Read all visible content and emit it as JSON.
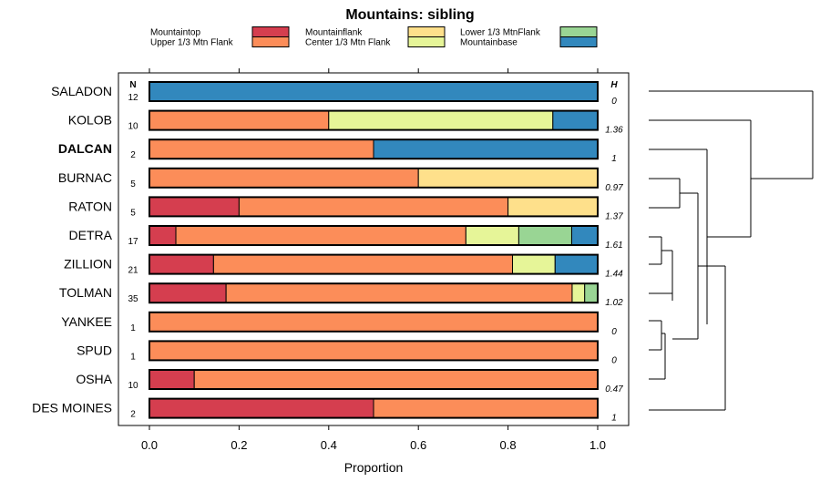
{
  "chart_data": {
    "type": "bar",
    "orientation": "horizontal",
    "stacked": true,
    "title": "Mountains: sibling",
    "xlabel": "Proportion",
    "xlim": [
      0,
      1
    ],
    "xticks": [
      "0.0",
      "0.2",
      "0.4",
      "0.6",
      "0.8",
      "1.0"
    ],
    "n_header": "N",
    "h_header": "H",
    "categories_legend": [
      {
        "name": "Mountaintop",
        "color": "#d53e4f"
      },
      {
        "name": "Upper 1/3 Mtn Flank",
        "color": "#fc8d59"
      },
      {
        "name": "Mountainflank",
        "color": "#fee08b"
      },
      {
        "name": "Center 1/3 Mtn Flank",
        "color": "#e6f598"
      },
      {
        "name": "Lower 1/3 MtnFlank",
        "color": "#99d594"
      },
      {
        "name": "Mountainbase",
        "color": "#3288bd"
      }
    ],
    "rows": [
      {
        "label": "SALADON",
        "bold": false,
        "n": "12",
        "h": "0",
        "segments": [
          {
            "cat": "Mountainbase",
            "value": 1.0
          }
        ]
      },
      {
        "label": "KOLOB",
        "bold": false,
        "n": "10",
        "h": "1.36",
        "segments": [
          {
            "cat": "Upper 1/3 Mtn Flank",
            "value": 0.4
          },
          {
            "cat": "Center 1/3 Mtn Flank",
            "value": 0.5
          },
          {
            "cat": "Mountainbase",
            "value": 0.1
          }
        ]
      },
      {
        "label": "DALCAN",
        "bold": true,
        "n": "2",
        "h": "1",
        "segments": [
          {
            "cat": "Upper 1/3 Mtn Flank",
            "value": 0.5
          },
          {
            "cat": "Mountainbase",
            "value": 0.5
          }
        ]
      },
      {
        "label": "BURNAC",
        "bold": false,
        "n": "5",
        "h": "0.97",
        "segments": [
          {
            "cat": "Upper 1/3 Mtn Flank",
            "value": 0.6
          },
          {
            "cat": "Mountainflank",
            "value": 0.4
          }
        ]
      },
      {
        "label": "RATON",
        "bold": false,
        "n": "5",
        "h": "1.37",
        "segments": [
          {
            "cat": "Mountaintop",
            "value": 0.2
          },
          {
            "cat": "Upper 1/3 Mtn Flank",
            "value": 0.6
          },
          {
            "cat": "Mountainflank",
            "value": 0.2
          }
        ]
      },
      {
        "label": "DETRA",
        "bold": false,
        "n": "17",
        "h": "1.61",
        "segments": [
          {
            "cat": "Mountaintop",
            "value": 0.059
          },
          {
            "cat": "Upper 1/3 Mtn Flank",
            "value": 0.647
          },
          {
            "cat": "Center 1/3 Mtn Flank",
            "value": 0.118
          },
          {
            "cat": "Lower 1/3 MtnFlank",
            "value": 0.118
          },
          {
            "cat": "Mountainbase",
            "value": 0.058
          }
        ]
      },
      {
        "label": "ZILLION",
        "bold": false,
        "n": "21",
        "h": "1.44",
        "segments": [
          {
            "cat": "Mountaintop",
            "value": 0.143
          },
          {
            "cat": "Upper 1/3 Mtn Flank",
            "value": 0.667
          },
          {
            "cat": "Center 1/3 Mtn Flank",
            "value": 0.095
          },
          {
            "cat": "Mountainbase",
            "value": 0.095
          }
        ]
      },
      {
        "label": "TOLMAN",
        "bold": false,
        "n": "35",
        "h": "1.02",
        "segments": [
          {
            "cat": "Mountaintop",
            "value": 0.171
          },
          {
            "cat": "Upper 1/3 Mtn Flank",
            "value": 0.772
          },
          {
            "cat": "Center 1/3 Mtn Flank",
            "value": 0.028
          },
          {
            "cat": "Lower 1/3 MtnFlank",
            "value": 0.029
          }
        ]
      },
      {
        "label": "YANKEE",
        "bold": false,
        "n": "1",
        "h": "0",
        "segments": [
          {
            "cat": "Upper 1/3 Mtn Flank",
            "value": 1.0
          }
        ]
      },
      {
        "label": "SPUD",
        "bold": false,
        "n": "1",
        "h": "0",
        "segments": [
          {
            "cat": "Upper 1/3 Mtn Flank",
            "value": 1.0
          }
        ]
      },
      {
        "label": "OSHA",
        "bold": false,
        "n": "10",
        "h": "0.47",
        "segments": [
          {
            "cat": "Mountaintop",
            "value": 0.1
          },
          {
            "cat": "Upper 1/3 Mtn Flank",
            "value": 0.9
          }
        ]
      },
      {
        "label": "DES MOINES",
        "bold": false,
        "n": "2",
        "h": "1",
        "segments": [
          {
            "cat": "Mountaintop",
            "value": 0.5
          },
          {
            "cat": "Upper 1/3 Mtn Flank",
            "value": 0.5
          }
        ]
      }
    ]
  }
}
